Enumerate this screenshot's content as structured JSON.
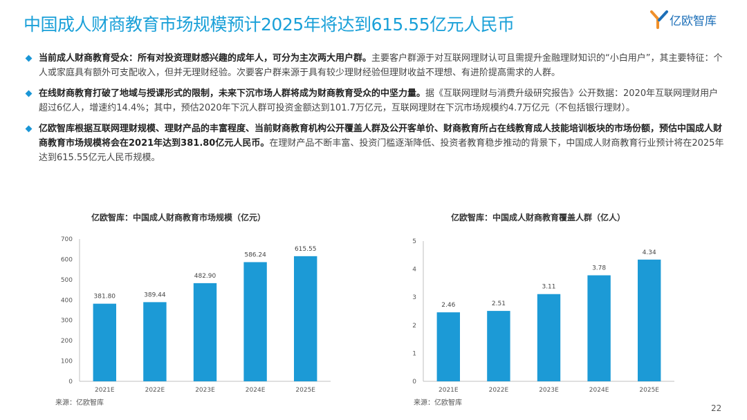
{
  "title": "中国成人财商教育市场规模预计2025年将达到615.55亿元人民币",
  "logo": {
    "text": "亿欧智库",
    "icon": "yiou-logo-icon"
  },
  "bullets": [
    {
      "bold": "当前成人财商教育受众：所有对投资理财感兴趣的成年人，可分为主次两大用户群。",
      "text": "主要客户群源于对互联网理财认可且需提升金融理财知识的“小白用户”，其主要特征：个人或家庭具有额外可支配收入，但并无理财经验。次要客户群来源于具有较少理财经验但理财收益不理想、有进阶提高需求的人群。"
    },
    {
      "bold": "在线财商教育打破了地域与授课形式的限制，未来下沉市场人群将成为财商教育受众的中坚力量。",
      "text": "据《互联网理财与消费升级研究报告》公开数据：2020年互联网理财用户超过6亿人，增速约14.4%；其中，预估2020年下沉人群可投资金额达到101.7万亿元，互联网理财在下沉市场规模约4.7万亿元（不包括银行理财）。"
    },
    {
      "bold": "亿欧智库根据互联网理财规模、理财产品的丰富程度、当前财商教育机构公开覆盖人群及公开客单价、财商教育所占在线教育成人技能培训板块的市场份额，预估中国成人财商教育市场规模将会在2021年达到381.80亿元人民币。",
      "text": "在理财产品不断丰富、投资门槛逐渐降低、投资者教育稳步推动的背景下，中国成人财商教育行业预计将在2025年达到615.55亿元人民币规模。"
    }
  ],
  "chart_data": [
    {
      "type": "bar",
      "title": "亿欧智库：中国成人财商教育市场规模（亿元）",
      "categories": [
        "2021E",
        "2022E",
        "2023E",
        "2024E",
        "2025E"
      ],
      "values": [
        381.8,
        389.44,
        482.9,
        586.24,
        615.55
      ],
      "value_labels": [
        "381.80",
        "389.44",
        "482.90",
        "586.24",
        "615.55"
      ],
      "y_ticks": [
        "0",
        "100",
        "200",
        "300",
        "400",
        "500",
        "600",
        "700"
      ],
      "ylim": [
        0,
        700
      ],
      "color": "#1c9ad6",
      "grid": false,
      "source": "来源：亿欧智库"
    },
    {
      "type": "bar",
      "title": "亿欧智库：中国成人财商教育覆盖人群（亿人）",
      "categories": [
        "2021E",
        "2022E",
        "2023E",
        "2024E",
        "2025E"
      ],
      "values": [
        2.46,
        2.51,
        3.11,
        3.78,
        4.34
      ],
      "value_labels": [
        "2.46",
        "2.51",
        "3.11",
        "3.78",
        "4.34"
      ],
      "y_ticks": [
        "0",
        "1",
        "2",
        "3",
        "4",
        "5"
      ],
      "ylim": [
        0,
        5
      ],
      "color": "#1c9ad6",
      "grid": false,
      "source": "来源：亿欧智库"
    }
  ],
  "page_number": "22"
}
